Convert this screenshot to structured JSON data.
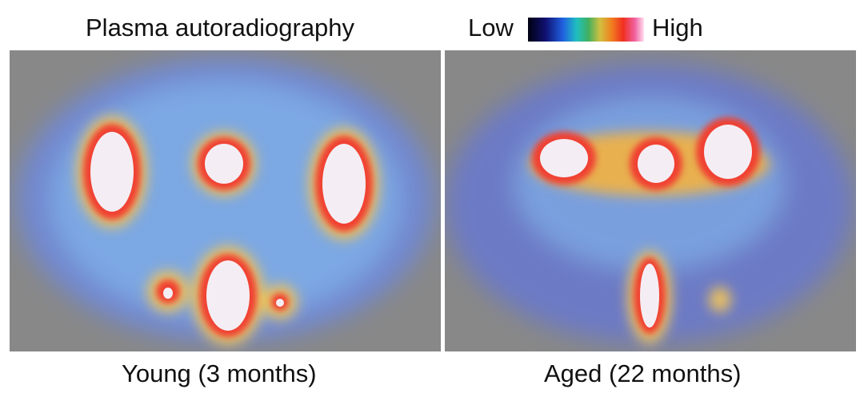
{
  "header": {
    "title": "Plasma autoradiography"
  },
  "legend": {
    "low": "Low",
    "high": "High"
  },
  "panels": [
    {
      "label": "Young (3 months)"
    },
    {
      "label": "Aged (22 months)"
    }
  ]
}
